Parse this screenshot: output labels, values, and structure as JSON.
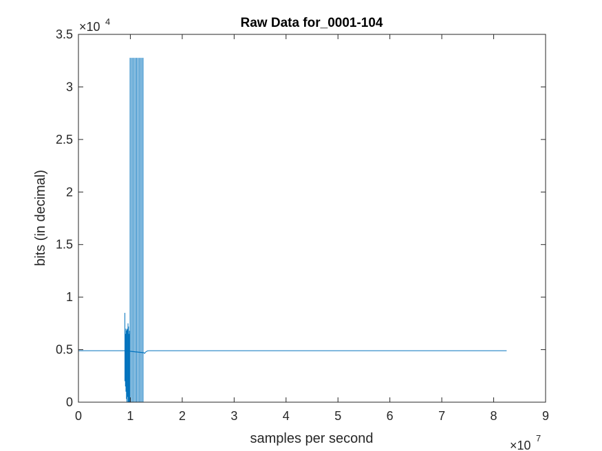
{
  "figure": {
    "background": "#ffffff",
    "axes_color": "#262626",
    "line_color": "#0072BD"
  },
  "chart_data": {
    "type": "line",
    "title": "Raw Data for_0001-104",
    "xlabel": "samples per second",
    "ylabel": "bits (in decimal)",
    "xlim": [
      0,
      90000000
    ],
    "ylim": [
      0,
      35000
    ],
    "x_ticks": [
      0,
      1,
      2,
      3,
      4,
      5,
      6,
      7,
      8,
      9
    ],
    "x_tick_labels": [
      "0",
      "1",
      "2",
      "3",
      "4",
      "5",
      "6",
      "7",
      "8",
      "9"
    ],
    "x_multiplier": {
      "base": "×10",
      "exponent": "7"
    },
    "y_ticks": [
      0,
      0.5,
      1,
      1.5,
      2,
      2.5,
      3,
      3.5
    ],
    "y_tick_labels": [
      "0",
      "0.5",
      "1",
      "1.5",
      "2",
      "2.5",
      "3",
      "3.5"
    ],
    "y_multiplier": {
      "base": "×10",
      "exponent": "4"
    },
    "grid": false,
    "box": true,
    "series": [
      {
        "baseline": 4900,
        "x_start": 0,
        "x_end": 82500000,
        "burst": {
          "x_start": 8900000,
          "x_end": 12700000,
          "events": [
            {
              "x": 8950000,
              "hi": 8500,
              "lo": 2000
            },
            {
              "x": 9050000,
              "hi": 6500,
              "lo": 1500
            },
            {
              "x": 9150000,
              "hi": 7000,
              "lo": 1000
            },
            {
              "x": 9250000,
              "hi": 6800,
              "lo": 300
            },
            {
              "x": 9350000,
              "hi": 6900,
              "lo": 0
            },
            {
              "x": 9450000,
              "hi": 7000,
              "lo": 500
            },
            {
              "x": 9550000,
              "hi": 7500,
              "lo": 0
            },
            {
              "x": 9650000,
              "hi": 7200,
              "lo": 0
            },
            {
              "x": 9750000,
              "hi": 6500,
              "lo": 0
            },
            {
              "x": 9850000,
              "hi": 6800,
              "lo": 0
            },
            {
              "x": 9950000,
              "hi": 32767,
              "lo": 0
            },
            {
              "x": 10200000,
              "hi": 32767,
              "lo": 0
            },
            {
              "x": 10450000,
              "hi": 32767,
              "lo": 0
            },
            {
              "x": 10700000,
              "hi": 32767,
              "lo": 0
            },
            {
              "x": 10950000,
              "hi": 32767,
              "lo": 0
            },
            {
              "x": 11200000,
              "hi": 32767,
              "lo": 0
            },
            {
              "x": 11450000,
              "hi": 32767,
              "lo": 0
            },
            {
              "x": 11700000,
              "hi": 32767,
              "lo": 0
            },
            {
              "x": 11950000,
              "hi": 32767,
              "lo": 0
            },
            {
              "x": 12200000,
              "hi": 32767,
              "lo": 0
            },
            {
              "x": 12450000,
              "hi": 32767,
              "lo": 0
            }
          ]
        }
      }
    ]
  }
}
